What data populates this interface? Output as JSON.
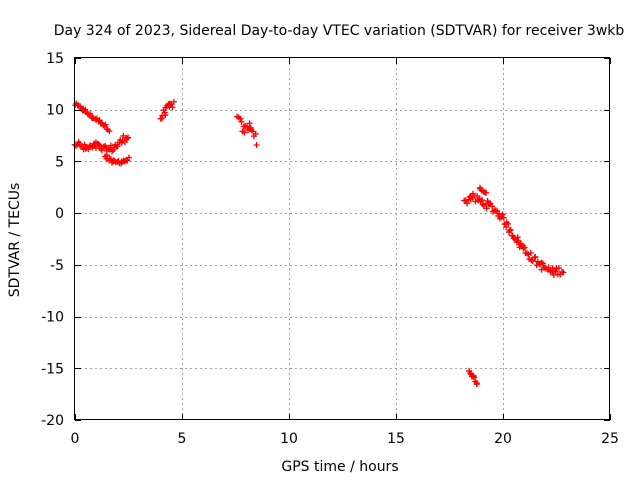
{
  "chart_data": {
    "type": "scatter",
    "title": "Day 324 of 2023, Sidereal Day-to-day VTEC variation (SDTVAR) for receiver 3wkb",
    "xlabel": "GPS time / hours",
    "ylabel": "SDTVAR / TECUs",
    "xlim": [
      0,
      25
    ],
    "ylim": [
      -20,
      15
    ],
    "xticks": [
      0,
      5,
      10,
      15,
      20,
      25
    ],
    "yticks": [
      15,
      10,
      5,
      0,
      -5,
      -10,
      -15,
      -20
    ],
    "grid": true,
    "marker": "plus",
    "series": [
      {
        "name": "SDTVAR",
        "color": "#ff0000",
        "segments": [
          {
            "x": [
              0.0,
              0.4,
              0.8,
              1.2,
              1.6
            ],
            "y": [
              10.5,
              10.0,
              9.3,
              8.8,
              8.1
            ],
            "spread": 0.35
          },
          {
            "x": [
              0.0,
              0.5,
              1.0,
              1.5,
              2.0,
              2.5
            ],
            "y": [
              6.8,
              6.2,
              6.5,
              6.0,
              6.6,
              7.6
            ],
            "spread": 0.8
          },
          {
            "x": [
              1.4,
              1.8,
              2.2,
              2.5
            ],
            "y": [
              5.4,
              4.9,
              5.0,
              5.2
            ],
            "spread": 0.4
          },
          {
            "x": [
              4.0,
              4.2,
              4.4,
              4.6
            ],
            "y": [
              9.2,
              9.8,
              10.3,
              10.6
            ],
            "spread": 0.7
          },
          {
            "x": [
              7.6,
              7.9,
              8.2,
              8.5
            ],
            "y": [
              9.2,
              8.0,
              8.5,
              7.0
            ],
            "spread": 0.9
          },
          {
            "x": [
              18.2,
              18.5,
              18.9,
              19.3,
              19.8,
              20.3,
              20.8,
              21.3,
              21.8,
              22.3,
              22.8
            ],
            "y": [
              1.0,
              1.6,
              1.2,
              0.8,
              0.0,
              -1.5,
              -3.0,
              -4.2,
              -5.1,
              -5.7,
              -5.5
            ],
            "spread": 0.8
          },
          {
            "x": [
              18.9,
              19.2
            ],
            "y": [
              2.5,
              1.8
            ],
            "spread": 0.4
          },
          {
            "x": [
              18.4,
              18.6,
              18.8
            ],
            "y": [
              -15.2,
              -15.8,
              -16.5
            ],
            "spread": 0.3
          }
        ]
      }
    ]
  }
}
